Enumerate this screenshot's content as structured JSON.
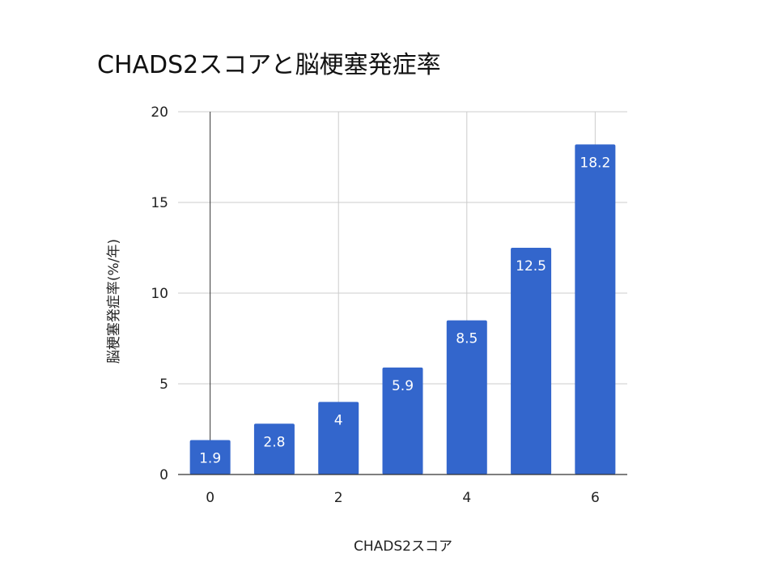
{
  "chart_data": {
    "type": "bar",
    "title": "CHADS2スコアと脳梗塞発症率",
    "xlabel": "CHADS2スコア",
    "ylabel": "脳梗塞発症率(%/年)",
    "x": [
      0,
      1,
      2,
      3,
      4,
      5,
      6
    ],
    "x_tick_labels": [
      "0",
      "2",
      "4",
      "6"
    ],
    "x_tick_values": [
      0,
      2,
      4,
      6
    ],
    "values": [
      1.9,
      2.8,
      4,
      5.9,
      8.5,
      12.5,
      18.2
    ],
    "data_labels": [
      "1.9",
      "2.8",
      "4",
      "5.9",
      "8.5",
      "12.5",
      "18.2"
    ],
    "y_tick_labels": [
      "0",
      "5",
      "10",
      "15",
      "20"
    ],
    "y_tick_values": [
      0,
      5,
      10,
      15,
      20
    ],
    "ylim": [
      0,
      20
    ],
    "xlim": [
      -0.5,
      6.5
    ],
    "grid": true,
    "legend": "none",
    "bar_color": "#3366cc",
    "grid_color": "#cccccc",
    "zero_line_color": "#333333"
  }
}
